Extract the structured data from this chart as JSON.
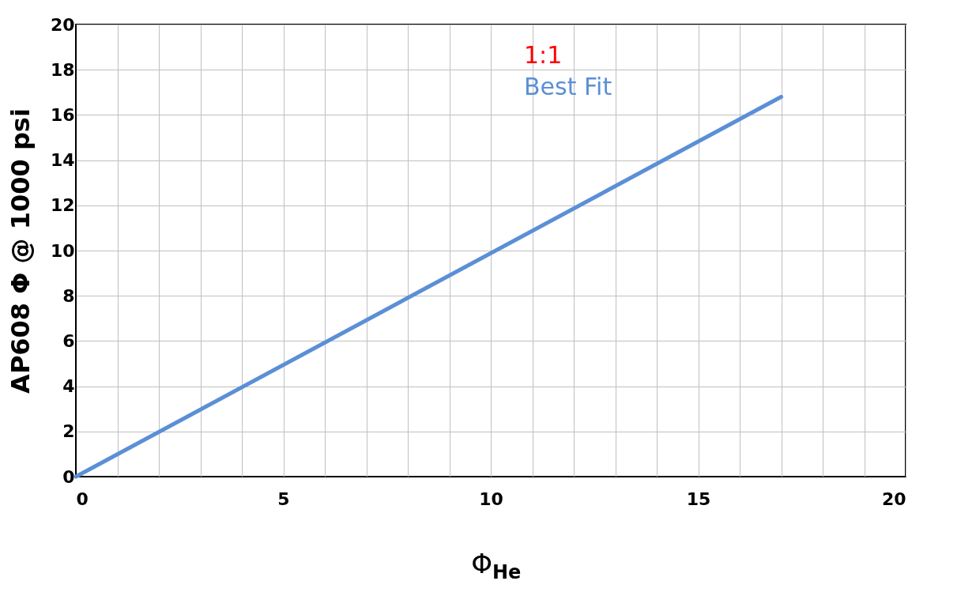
{
  "chart_data": {
    "type": "line",
    "xlabel": "Φ$_{He}$",
    "ylabel": "AP608 Φ @ 1000 psi",
    "x": [
      0,
      17
    ],
    "series": [
      {
        "name": "1:1",
        "color": "#ff0000",
        "values": [
          null,
          null
        ]
      },
      {
        "name": "Best Fit",
        "color": "#5b8fd6",
        "values": [
          0,
          16.8
        ]
      }
    ],
    "xlim": [
      0,
      20
    ],
    "xticks": [
      0,
      {
        "value": 1,
        "label": null
      },
      {
        "value": 2,
        "label": null
      },
      {
        "value": 3,
        "label": null
      },
      {
        "value": 4,
        "label": null
      },
      5,
      {
        "value": 6,
        "label": null
      },
      {
        "value": 7,
        "label": null
      },
      {
        "value": 8,
        "label": null
      },
      {
        "value": 9,
        "label": null
      },
      10,
      {
        "value": 11,
        "label": null
      },
      {
        "value": 12,
        "label": null
      },
      {
        "value": 13,
        "label": null
      },
      {
        "value": 14,
        "label": null
      },
      15,
      {
        "value": 16,
        "label": null
      },
      {
        "value": 17,
        "label": null
      },
      {
        "value": 18,
        "label": null
      },
      {
        "value": 19,
        "label": null
      },
      20
    ],
    "ylim": [
      0,
      20
    ],
    "yticks": [
      0,
      2,
      4,
      6,
      8,
      10,
      12,
      14,
      16,
      18,
      20
    ],
    "grid": true,
    "legend": "top",
    "line_style": "solid",
    "marker": "none"
  }
}
